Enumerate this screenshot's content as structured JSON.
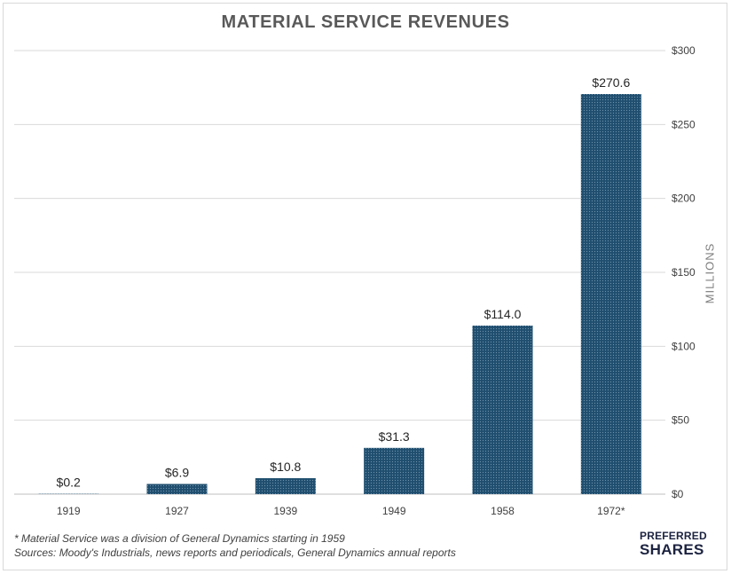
{
  "chart_data": {
    "type": "bar",
    "title": "MATERIAL SERVICE REVENUES",
    "ylabel": "MILLIONS",
    "xlabel": "",
    "categories": [
      "1919",
      "1927",
      "1939",
      "1949",
      "1958",
      "1972*"
    ],
    "values": [
      0.2,
      6.9,
      10.8,
      31.3,
      114.0,
      270.6
    ],
    "data_labels": [
      "$0.2",
      "$6.9",
      "$10.8",
      "$31.3",
      "$114.0",
      "$270.6"
    ],
    "ylim": [
      0,
      300
    ],
    "y_ticks": [
      0,
      50,
      100,
      150,
      200,
      250,
      300
    ],
    "y_tick_labels": [
      "$0",
      "$50",
      "$100",
      "$150",
      "$200",
      "$250",
      "$300"
    ],
    "y_axis_position": "right",
    "grid": true,
    "bar_color": "#1f4e6e",
    "bar_pattern": "dotted"
  },
  "footnotes": {
    "note": "* Material Service was a division of General Dynamics starting in 1959",
    "sources": "Sources: Moody's Industrials, news reports and periodicals, General Dynamics annual reports"
  },
  "logo": {
    "top": "PREFERRED",
    "bottom": "SHARES"
  }
}
